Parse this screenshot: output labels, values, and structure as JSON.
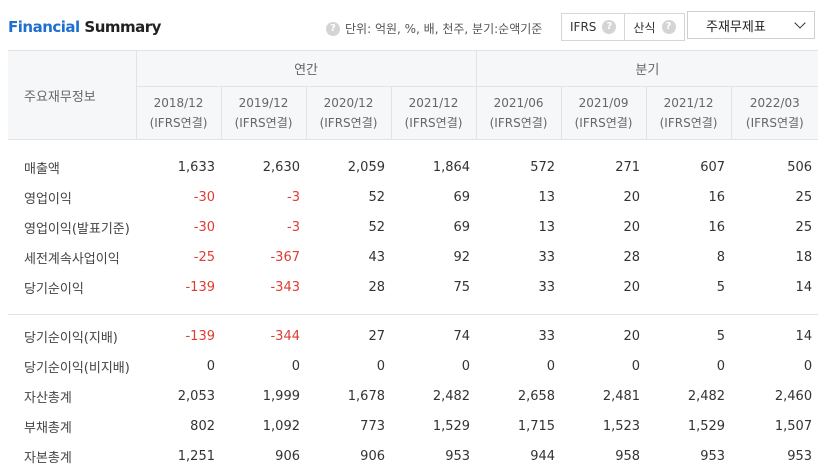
{
  "header": {
    "title_part1": "Financial",
    "title_part2": " Summary",
    "unit_text": "단위: 억원, %, 배, 천주, 분기:순액기준",
    "toggle_ifrs": "IFRS",
    "toggle_calc": "산식",
    "help_glyph": "?",
    "select_value": "주재무제표"
  },
  "table": {
    "corner_label": "주요재무정보",
    "group_annual": "연간",
    "group_quarter": "분기",
    "periods": [
      {
        "date": "2018/12",
        "basis": "(IFRS연결)"
      },
      {
        "date": "2019/12",
        "basis": "(IFRS연결)"
      },
      {
        "date": "2020/12",
        "basis": "(IFRS연결)"
      },
      {
        "date": "2021/12",
        "basis": "(IFRS연결)"
      },
      {
        "date": "2021/06",
        "basis": "(IFRS연결)"
      },
      {
        "date": "2021/09",
        "basis": "(IFRS연결)"
      },
      {
        "date": "2021/12",
        "basis": "(IFRS연결)"
      },
      {
        "date": "2022/03",
        "basis": "(IFRS연결)"
      }
    ],
    "group1": [
      {
        "label": "매출액",
        "values": [
          "1,633",
          "2,630",
          "2,059",
          "1,864",
          "572",
          "271",
          "607",
          "506"
        ]
      },
      {
        "label": "영업이익",
        "values": [
          "-30",
          "-3",
          "52",
          "69",
          "13",
          "20",
          "16",
          "25"
        ]
      },
      {
        "label": "영업이익(발표기준)",
        "values": [
          "-30",
          "-3",
          "52",
          "69",
          "13",
          "20",
          "16",
          "25"
        ]
      },
      {
        "label": "세전계속사업이익",
        "values": [
          "-25",
          "-367",
          "43",
          "92",
          "33",
          "28",
          "8",
          "18"
        ]
      },
      {
        "label": "당기순이익",
        "values": [
          "-139",
          "-343",
          "28",
          "75",
          "33",
          "20",
          "5",
          "14"
        ]
      }
    ],
    "group2": [
      {
        "label": "당기순이익(지배)",
        "values": [
          "-139",
          "-344",
          "27",
          "74",
          "33",
          "20",
          "5",
          "14"
        ]
      },
      {
        "label": "당기순이익(비지배)",
        "values": [
          "0",
          "0",
          "0",
          "0",
          "0",
          "0",
          "0",
          "0"
        ]
      },
      {
        "label": "자산총계",
        "values": [
          "2,053",
          "1,999",
          "1,678",
          "2,482",
          "2,658",
          "2,481",
          "2,482",
          "2,460"
        ]
      },
      {
        "label": "부채총계",
        "values": [
          "802",
          "1,092",
          "773",
          "1,529",
          "1,715",
          "1,523",
          "1,529",
          "1,507"
        ]
      },
      {
        "label": "자본총계",
        "values": [
          "1,251",
          "906",
          "906",
          "953",
          "944",
          "958",
          "953",
          "953"
        ]
      }
    ]
  },
  "colors": {
    "accent": "#1f6fd1",
    "negative": "#e03c31",
    "header_bg": "#f6f7f9"
  }
}
